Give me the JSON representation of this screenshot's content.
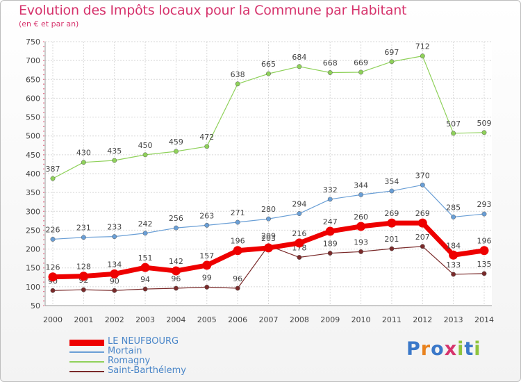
{
  "chart_data": {
    "type": "line",
    "title": "Evolution des Impôts locaux pour la Commune par Habitant",
    "subtitle": "(en € et par an)",
    "xlabel": "",
    "ylabel": "",
    "x": [
      "2000",
      "2001",
      "2002",
      "2003",
      "2004",
      "2005",
      "2006",
      "2007",
      "2008",
      "2009",
      "2010",
      "2011",
      "2012",
      "2013",
      "2014"
    ],
    "ylim": [
      50,
      750
    ],
    "yticks": [
      50,
      100,
      150,
      200,
      250,
      300,
      350,
      400,
      450,
      500,
      550,
      600,
      650,
      700,
      750
    ],
    "grid": true,
    "legend_position": "bottom-left",
    "series": [
      {
        "name": "Romagny",
        "color": "#8fd15a",
        "values": [
          387,
          430,
          435,
          450,
          459,
          472,
          638,
          665,
          684,
          668,
          669,
          697,
          712,
          507,
          509
        ]
      },
      {
        "name": "Mortain",
        "color": "#6a9fd6",
        "values": [
          226,
          231,
          233,
          242,
          256,
          263,
          271,
          280,
          294,
          332,
          344,
          354,
          370,
          285,
          293
        ]
      },
      {
        "name": "Saint-Barthélemy",
        "color": "#7a2a2a",
        "values": [
          90,
          92,
          90,
          94,
          96,
          99,
          96,
          209,
          178,
          189,
          193,
          201,
          207,
          133,
          135
        ]
      },
      {
        "name": "LE NEUFBOURG",
        "color": "#ee0000",
        "values": [
          126,
          128,
          134,
          151,
          142,
          157,
          196,
          203,
          216,
          247,
          260,
          269,
          269,
          184,
          196
        ]
      }
    ],
    "legend_order": [
      "LE NEUFBOURG",
      "Mortain",
      "Romagny",
      "Saint-Barthélemy"
    ]
  },
  "logo": {
    "text": "Proxiti",
    "letters": [
      "P",
      "r",
      "o",
      "x",
      "i",
      "t",
      "i"
    ],
    "colors": [
      "#3a78c9",
      "#e8821e",
      "#3a78c9",
      "#d6336c",
      "#8fc43d",
      "#3a78c9",
      "#8fc43d"
    ]
  }
}
